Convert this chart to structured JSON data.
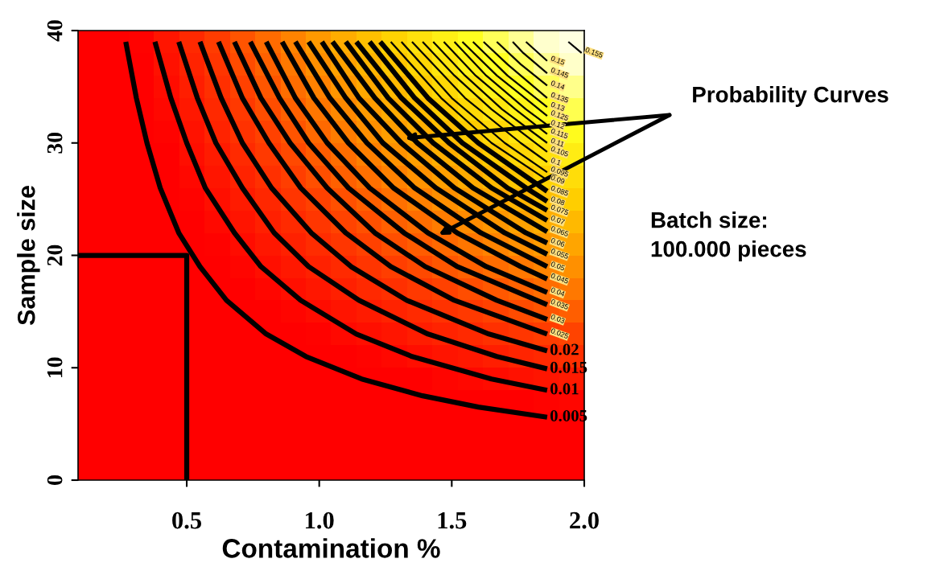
{
  "chart_data": {
    "type": "line",
    "xlabel": "Contamination %",
    "ylabel": "Sample size",
    "xlim": [
      0.09,
      2.0
    ],
    "ylim": [
      0,
      40
    ],
    "xticks": [
      {
        "value": 0.5,
        "label": "0.5"
      },
      {
        "value": 1.0,
        "label": "1.0"
      },
      {
        "value": 1.5,
        "label": "1.5"
      },
      {
        "value": 2.0,
        "label": "2.0"
      }
    ],
    "yticks": [
      0,
      10,
      20,
      30,
      40
    ],
    "grid": false,
    "legend": false,
    "annotations": [
      "Probability Curves",
      "Batch size:\n100.000 pieces"
    ],
    "series": [
      {
        "name": "0.005",
        "color": "#000000",
        "x": [
          0.27,
          0.31,
          0.35,
          0.4,
          0.47,
          0.55,
          0.65,
          0.8,
          0.95,
          1.16,
          1.39,
          1.6,
          1.86
        ],
        "values": [
          39,
          34,
          30,
          26,
          22,
          19,
          16,
          13,
          11,
          9,
          7.5,
          6.5,
          5.6
        ]
      },
      {
        "name": "0.01",
        "color": "#000000",
        "x": [
          0.38,
          0.44,
          0.5,
          0.57,
          0.68,
          0.78,
          0.93,
          1.14,
          1.35,
          1.65,
          1.86
        ],
        "values": [
          39,
          34,
          30,
          26,
          22,
          19,
          16,
          13,
          11,
          9,
          8.0
        ]
      },
      {
        "name": "0.015",
        "color": "#000000",
        "x": [
          0.47,
          0.54,
          0.61,
          0.71,
          0.83,
          0.96,
          1.15,
          1.41,
          1.67,
          1.86
        ],
        "values": [
          39,
          34,
          30,
          26,
          22,
          19,
          16,
          13,
          11,
          9.9
        ]
      },
      {
        "name": "0.02",
        "color": "#000000",
        "x": [
          0.55,
          0.63,
          0.71,
          0.82,
          0.97,
          1.12,
          1.33,
          1.64,
          1.86
        ],
        "values": [
          39,
          34,
          30,
          26,
          22,
          19,
          16,
          13,
          11.5
        ]
      },
      {
        "name": "0.025",
        "color": "#000000",
        "x": [
          0.62,
          0.71,
          0.81,
          0.93,
          1.1,
          1.27,
          1.51,
          1.86
        ],
        "values": [
          39,
          34,
          30,
          26,
          22,
          19,
          16,
          13.0
        ]
      },
      {
        "name": "0.03",
        "color": "#000000",
        "x": [
          0.68,
          0.78,
          0.89,
          1.03,
          1.21,
          1.4,
          1.67,
          1.86
        ],
        "values": [
          39,
          34,
          30,
          26,
          22,
          19,
          16,
          14.3
        ]
      },
      {
        "name": "0.035",
        "color": "#000000",
        "x": [
          0.74,
          0.85,
          0.96,
          1.11,
          1.32,
          1.52,
          1.86
        ],
        "values": [
          39,
          34,
          30,
          26,
          22,
          19,
          15.6
        ]
      },
      {
        "name": "0.04",
        "color": "#000000",
        "x": [
          0.8,
          0.91,
          1.03,
          1.19,
          1.41,
          1.63,
          1.86
        ],
        "values": [
          39,
          34,
          30,
          26,
          22,
          19,
          16.7
        ]
      },
      {
        "name": "0.045",
        "color": "#000000",
        "x": [
          0.86,
          0.98,
          1.11,
          1.28,
          1.52,
          1.76,
          1.86
        ],
        "values": [
          39,
          34,
          30,
          26,
          22,
          19,
          17.9
        ]
      },
      {
        "name": "0.05",
        "color": "#000000",
        "x": [
          0.91,
          1.04,
          1.18,
          1.36,
          1.61,
          1.86
        ],
        "values": [
          39,
          34,
          30,
          26,
          22,
          19.0
        ]
      },
      {
        "name": "0.055",
        "color": "#000000",
        "x": [
          0.96,
          1.1,
          1.24,
          1.44,
          1.7,
          1.86
        ],
        "values": [
          39,
          34,
          30,
          26,
          22,
          20.1
        ]
      },
      {
        "name": "0.06",
        "color": "#000000",
        "x": [
          1.01,
          1.15,
          1.31,
          1.51,
          1.78,
          1.86
        ],
        "values": [
          39,
          34,
          30,
          26,
          22,
          21.1
        ]
      },
      {
        "name": "0.065",
        "color": "#000000",
        "x": [
          1.05,
          1.21,
          1.37,
          1.58,
          1.86
        ],
        "values": [
          39,
          34,
          30,
          26,
          22.1
        ]
      },
      {
        "name": "0.07",
        "color": "#000000",
        "x": [
          1.1,
          1.26,
          1.43,
          1.65,
          1.86
        ],
        "values": [
          39,
          34,
          30,
          26,
          23.1
        ]
      },
      {
        "name": "0.075",
        "color": "#000000",
        "x": [
          1.14,
          1.31,
          1.49,
          1.71,
          1.86
        ],
        "values": [
          39,
          34,
          30,
          26,
          24.0
        ]
      },
      {
        "name": "0.08",
        "color": "#000000",
        "x": [
          1.19,
          1.36,
          1.54,
          1.78,
          1.86
        ],
        "values": [
          39,
          34,
          30,
          26,
          24.8
        ]
      },
      {
        "name": "0.085",
        "color": "#000000",
        "x": [
          1.23,
          1.41,
          1.6,
          1.86
        ],
        "values": [
          39,
          34,
          30,
          25.7
        ]
      },
      {
        "name": "0.09",
        "color": "#000000",
        "x": [
          1.27,
          1.46,
          1.65,
          1.86
        ],
        "values": [
          39,
          34,
          30,
          26.7
        ]
      },
      {
        "name": "0.095",
        "color": "#000000",
        "x": [
          1.31,
          1.5,
          1.7,
          1.86
        ],
        "values": [
          39,
          34,
          30,
          27.4
        ]
      },
      {
        "name": "0.1",
        "color": "#000000",
        "x": [
          1.35,
          1.55,
          1.76,
          1.86
        ],
        "values": [
          39,
          34,
          30,
          28.3
        ]
      },
      {
        "name": "0.105",
        "color": "#000000",
        "x": [
          1.39,
          1.51,
          1.65,
          1.86
        ],
        "values": [
          39,
          36,
          33,
          29.2
        ]
      },
      {
        "name": "0.11",
        "color": "#000000",
        "x": [
          1.43,
          1.55,
          1.69,
          1.86
        ],
        "values": [
          39,
          36,
          33,
          30.0
        ]
      },
      {
        "name": "0.115",
        "color": "#000000",
        "x": [
          1.47,
          1.59,
          1.74,
          1.86
        ],
        "values": [
          39,
          36,
          33,
          30.8
        ]
      },
      {
        "name": "0.12",
        "color": "#000000",
        "x": [
          1.51,
          1.63,
          1.78,
          1.86
        ],
        "values": [
          39,
          36,
          33,
          31.6
        ]
      },
      {
        "name": "0.125",
        "color": "#000000",
        "x": [
          1.54,
          1.67,
          1.75,
          1.86
        ],
        "values": [
          39,
          36,
          34.5,
          32.4
        ]
      },
      {
        "name": "0.13",
        "color": "#000000",
        "x": [
          1.58,
          1.71,
          1.86
        ],
        "values": [
          39,
          36,
          33.2
        ]
      },
      {
        "name": "0.135",
        "color": "#000000",
        "x": [
          1.62,
          1.71,
          1.86
        ],
        "values": [
          39,
          37,
          34.0
        ]
      },
      {
        "name": "0.14",
        "color": "#000000",
        "x": [
          1.67,
          1.76,
          1.86
        ],
        "values": [
          39,
          37,
          35.1
        ]
      },
      {
        "name": "0.145",
        "color": "#000000",
        "x": [
          1.73,
          1.77,
          1.86
        ],
        "values": [
          39,
          38,
          36.2
        ]
      },
      {
        "name": "0.15",
        "color": "#000000",
        "x": [
          1.78,
          1.86
        ],
        "values": [
          39,
          37.3
        ]
      },
      {
        "name": "0.155",
        "color": "#000000",
        "x": [
          1.94,
          1.99
        ],
        "values": [
          39,
          38.0
        ]
      },
      {
        "color": "#000000",
        "x": [
          0.09,
          0.5,
          0.5
        ],
        "values": [
          20,
          20,
          0
        ]
      }
    ]
  }
}
